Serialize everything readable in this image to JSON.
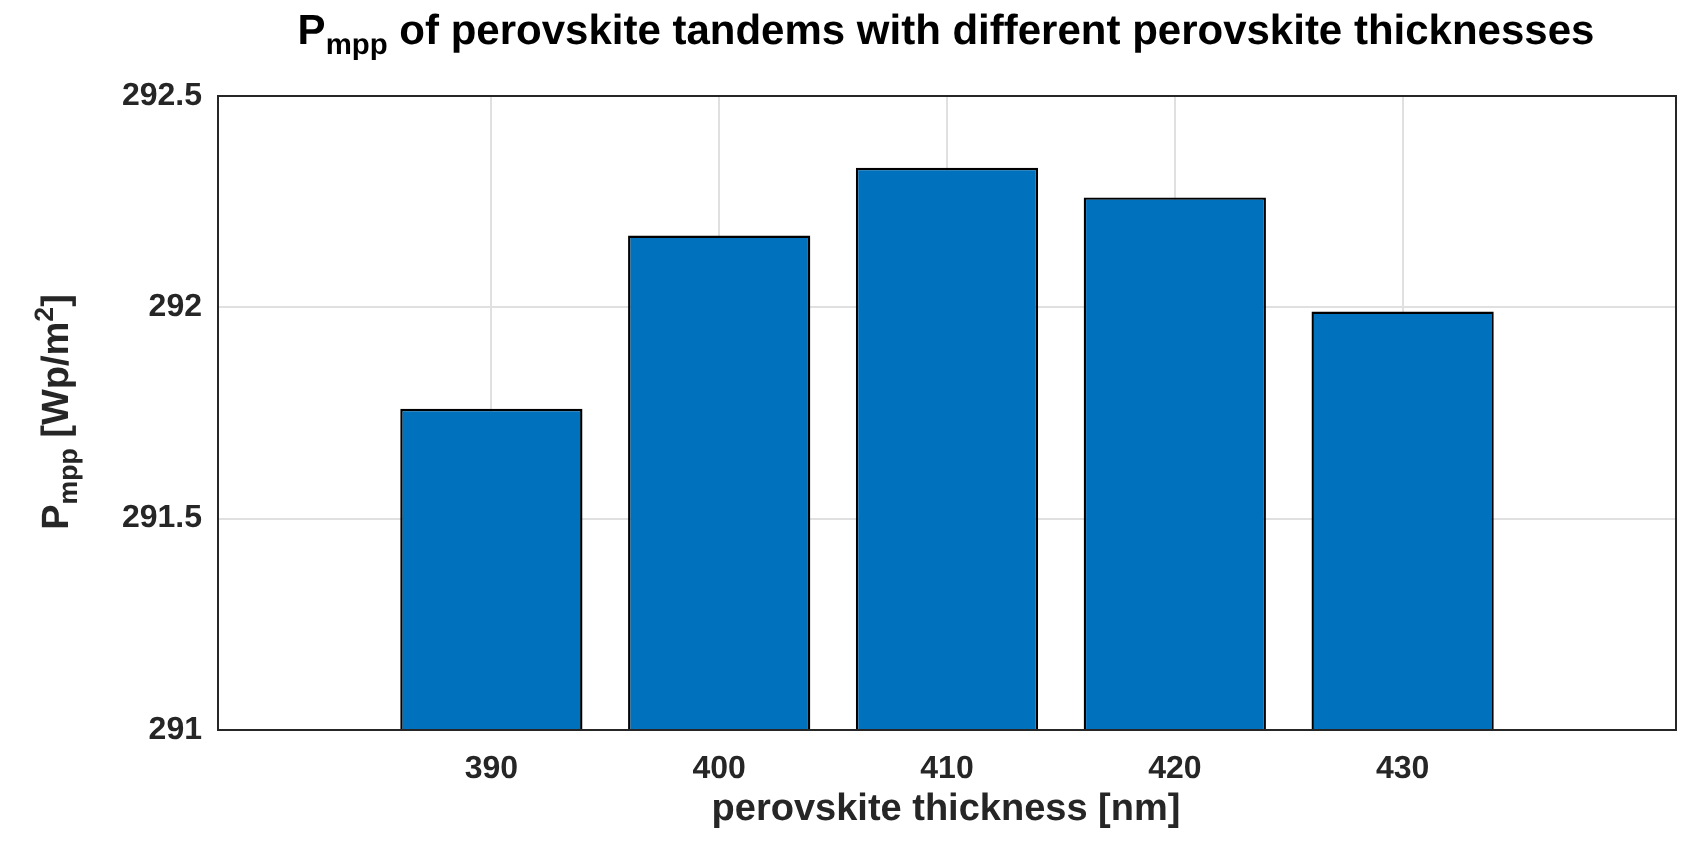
{
  "chart_data": {
    "type": "bar",
    "title": "P$_{mpp}$ of perovskite tandems with different perovskite thicknesses",
    "xlabel": "perovskite thickness [nm]",
    "ylabel": "P$_{mpp}$ [Wp/m$^{2}$]",
    "x": [
      390,
      400,
      410,
      420,
      430
    ],
    "values": [
      291.76,
      292.17,
      292.33,
      292.26,
      291.99
    ],
    "color": "#0072bd",
    "xlim": [
      378,
      442
    ],
    "xticks": [
      390,
      400,
      410,
      420,
      430
    ],
    "ylim": [
      291,
      292.5
    ],
    "yticks": [
      291,
      291.5,
      292,
      292.5
    ],
    "grid": true
  }
}
